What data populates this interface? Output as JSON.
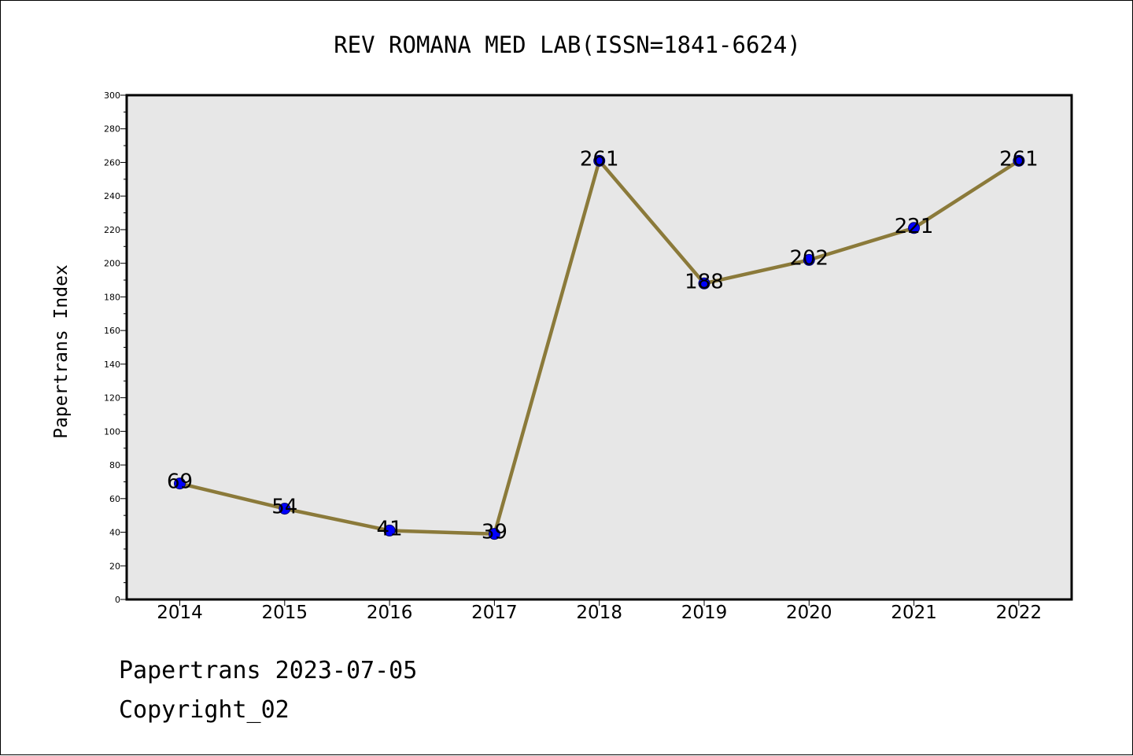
{
  "chart_data": {
    "type": "line",
    "title": "REV ROMANA MED LAB(ISSN=1841-6624)",
    "ylabel": "Papertrans Index",
    "xlabel": "",
    "categories": [
      "2014",
      "2015",
      "2016",
      "2017",
      "2018",
      "2019",
      "2020",
      "2021",
      "2022"
    ],
    "series": [
      {
        "values": [
          69,
          54,
          41,
          39,
          261,
          188,
          202,
          221,
          261
        ]
      }
    ],
    "data_labels": [
      "69",
      "54",
      "41",
      "39",
      "261",
      "188",
      "202",
      "221",
      "261"
    ],
    "ylim": [
      0,
      300
    ],
    "yticks": [
      "0",
      "20",
      "40",
      "60",
      "80",
      "100",
      "120",
      "140",
      "160",
      "180",
      "200",
      "220",
      "240",
      "260",
      "280",
      "300"
    ],
    "grid": false,
    "legend": "none",
    "colors": {
      "line": "#8B7A3A",
      "marker": "#0000FF",
      "plot_background": "#E7E7E7"
    }
  },
  "footer": {
    "line1": "Papertrans 2023-07-05",
    "line2": "Copyright_02"
  }
}
